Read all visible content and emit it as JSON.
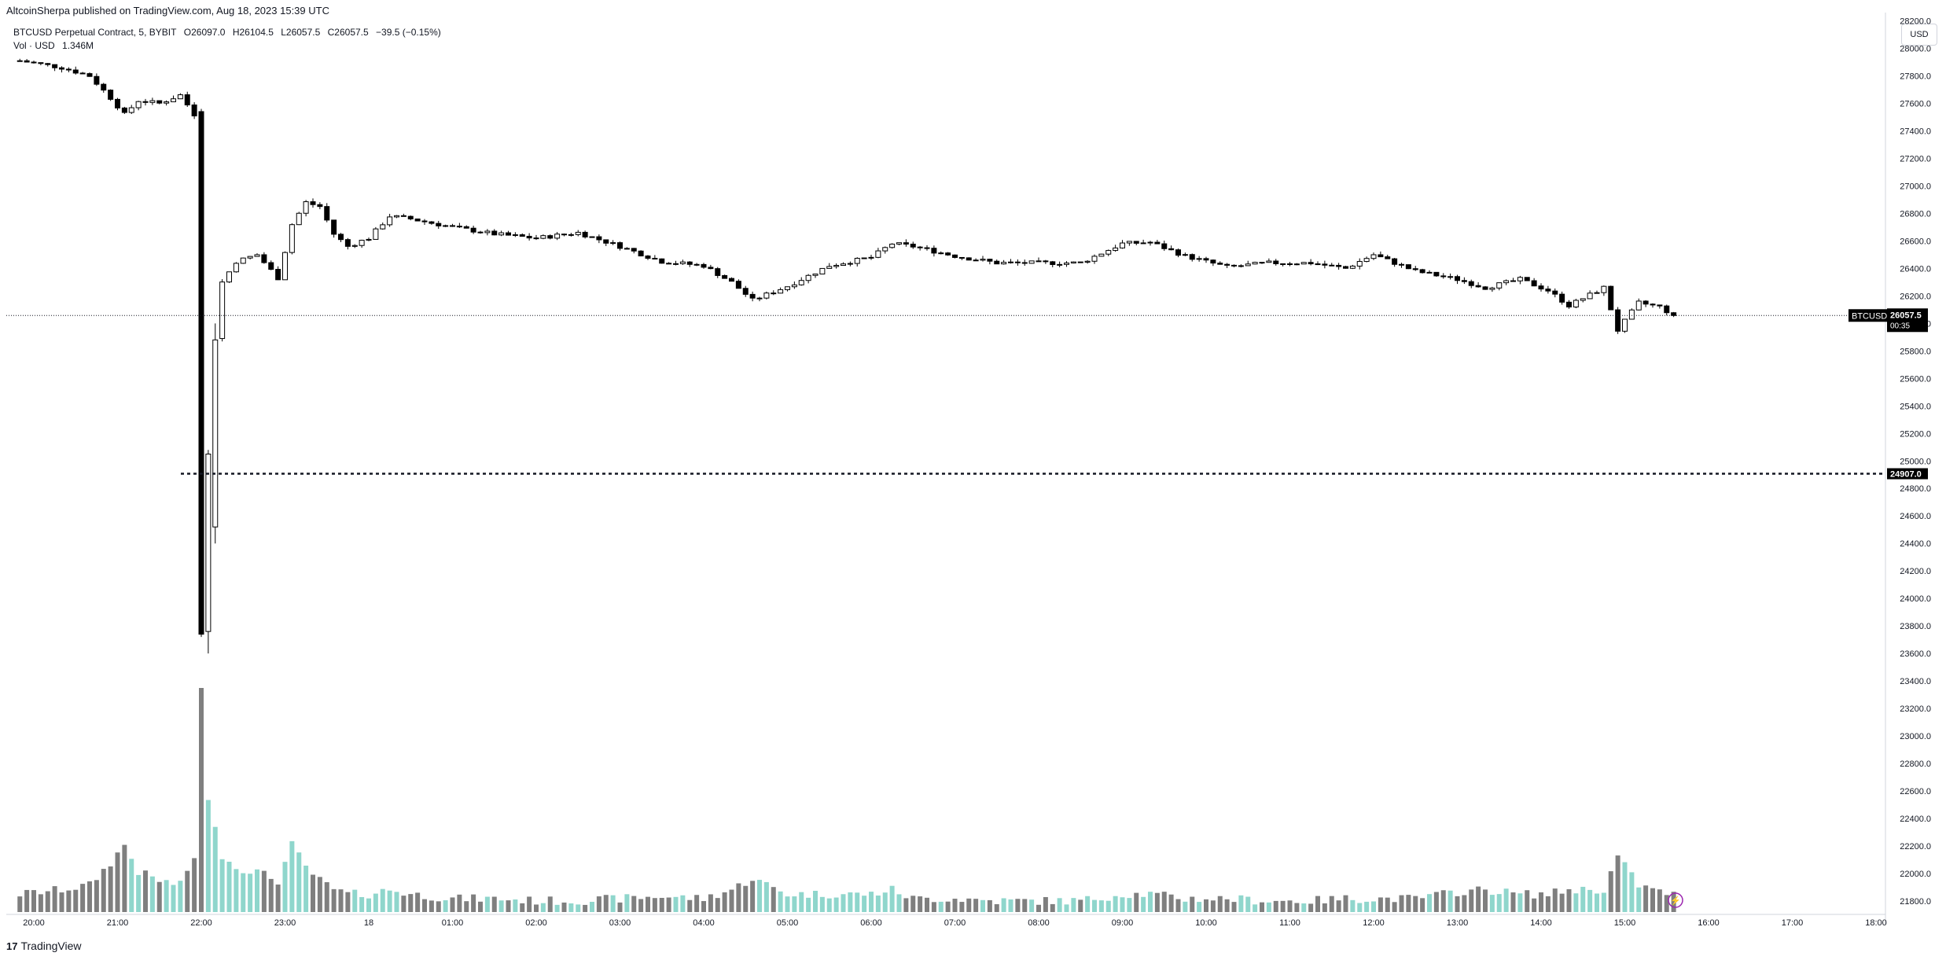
{
  "header": {
    "published": "AltcoinSherpa published on TradingView.com, Aug 18, 2023 15:39 UTC"
  },
  "legend": {
    "symbol": "BTCUSD Perpetual Contract, 5, BYBIT",
    "open": "O26097.0",
    "high": "H26104.5",
    "low": "L26057.5",
    "close": "C26057.5",
    "change": "−39.5 (−0.15%)",
    "vol_label": "Vol · USD",
    "vol_value": "1.346M"
  },
  "currency_button": "USD",
  "price_tag": {
    "symbol": "BTCUSD.P",
    "price": "26057.5",
    "countdown": "00:35"
  },
  "level_tag": "24907.0",
  "footer": {
    "logo": "17",
    "brand": "TradingView"
  },
  "colors": {
    "up_fill": "#ffffff",
    "down_fill": "#000000",
    "wick": "#000000",
    "vol_up": "#8fd6cc",
    "vol_down": "#7f7f7f",
    "flash": "#9c27b0"
  },
  "chart_data": {
    "type": "candlestick",
    "price_axis": {
      "ticks": [
        "28200.0",
        "28000.0",
        "27800.0",
        "27600.0",
        "27400.0",
        "27200.0",
        "27000.0",
        "26800.0",
        "26600.0",
        "26400.0",
        "26200.0",
        "26000.0",
        "25800.0",
        "25600.0",
        "25400.0",
        "25200.0",
        "25000.0",
        "24800.0",
        "24600.0",
        "24400.0",
        "24200.0",
        "24000.0",
        "23800.0",
        "23600.0",
        "23400.0",
        "23200.0",
        "23000.0",
        "22800.0",
        "22600.0",
        "22400.0",
        "22200.0",
        "22000.0",
        "21800.0"
      ],
      "range": [
        21720,
        28260
      ]
    },
    "time_axis": {
      "ticks": [
        "20:00",
        "21:00",
        "22:00",
        "23:00",
        "18",
        "01:00",
        "02:00",
        "03:00",
        "04:00",
        "05:00",
        "06:00",
        "07:00",
        "08:00",
        "09:00",
        "10:00",
        "11:00",
        "12:00",
        "13:00",
        "14:00",
        "15:00",
        "16:00",
        "17:00",
        "18:00"
      ]
    },
    "horizontal_level": 24907.0,
    "last_price": 26057.5,
    "anchors": [
      [
        "19:50",
        27910,
        0.08
      ],
      [
        "20:20",
        27860,
        0.1
      ],
      [
        "20:40",
        27800,
        0.12
      ],
      [
        "20:55",
        27640,
        0.22
      ],
      [
        "21:05",
        27520,
        0.3
      ],
      [
        "21:15",
        27620,
        0.18
      ],
      [
        "21:30",
        27600,
        0.14
      ],
      [
        "21:45",
        27660,
        0.12
      ],
      [
        "21:55",
        27520,
        0.25
      ],
      [
        "22:00",
        26500,
        0.4
      ],
      [
        "22:02",
        23720,
        1.0
      ],
      [
        "22:07",
        24500,
        0.4
      ],
      [
        "22:10",
        25900,
        0.35
      ],
      [
        "22:15",
        26300,
        0.25
      ],
      [
        "22:25",
        26450,
        0.2
      ],
      [
        "22:40",
        26500,
        0.18
      ],
      [
        "22:55",
        26330,
        0.14
      ],
      [
        "23:05",
        26720,
        0.3
      ],
      [
        "23:15",
        26880,
        0.2
      ],
      [
        "23:25",
        26850,
        0.14
      ],
      [
        "23:35",
        26650,
        0.1
      ],
      [
        "23:45",
        26560,
        0.08
      ],
      [
        "00:00",
        26620,
        0.08
      ],
      [
        "00:15",
        26780,
        0.1
      ],
      [
        "00:30",
        26760,
        0.08
      ],
      [
        "01:00",
        26700,
        0.06
      ],
      [
        "01:30",
        26650,
        0.06
      ],
      [
        "02:00",
        26620,
        0.05
      ],
      [
        "02:30",
        26660,
        0.05
      ],
      [
        "03:00",
        26560,
        0.06
      ],
      [
        "03:30",
        26450,
        0.07
      ],
      [
        "04:00",
        26420,
        0.06
      ],
      [
        "04:20",
        26300,
        0.1
      ],
      [
        "04:35",
        26170,
        0.15
      ],
      [
        "05:00",
        26270,
        0.08
      ],
      [
        "05:30",
        26420,
        0.08
      ],
      [
        "06:00",
        26480,
        0.08
      ],
      [
        "06:15",
        26580,
        0.1
      ],
      [
        "06:30",
        26560,
        0.06
      ],
      [
        "07:00",
        26490,
        0.06
      ],
      [
        "07:30",
        26440,
        0.05
      ],
      [
        "08:00",
        26440,
        0.05
      ],
      [
        "08:30",
        26440,
        0.05
      ],
      [
        "09:00",
        26580,
        0.08
      ],
      [
        "09:20",
        26590,
        0.08
      ],
      [
        "09:45",
        26490,
        0.06
      ],
      [
        "10:15",
        26410,
        0.06
      ],
      [
        "10:45",
        26440,
        0.05
      ],
      [
        "11:15",
        26440,
        0.05
      ],
      [
        "11:40",
        26400,
        0.06
      ],
      [
        "12:00",
        26500,
        0.06
      ],
      [
        "12:30",
        26380,
        0.06
      ],
      [
        "13:00",
        26320,
        0.09
      ],
      [
        "13:20",
        26260,
        0.1
      ],
      [
        "13:45",
        26320,
        0.08
      ],
      [
        "14:05",
        26240,
        0.08
      ],
      [
        "14:20",
        26130,
        0.1
      ],
      [
        "14:45",
        26260,
        0.1
      ],
      [
        "14:55",
        25950,
        0.25
      ],
      [
        "15:10",
        26150,
        0.12
      ],
      [
        "15:25",
        26120,
        0.09
      ],
      [
        "15:35",
        26057.5,
        0.08
      ]
    ]
  }
}
